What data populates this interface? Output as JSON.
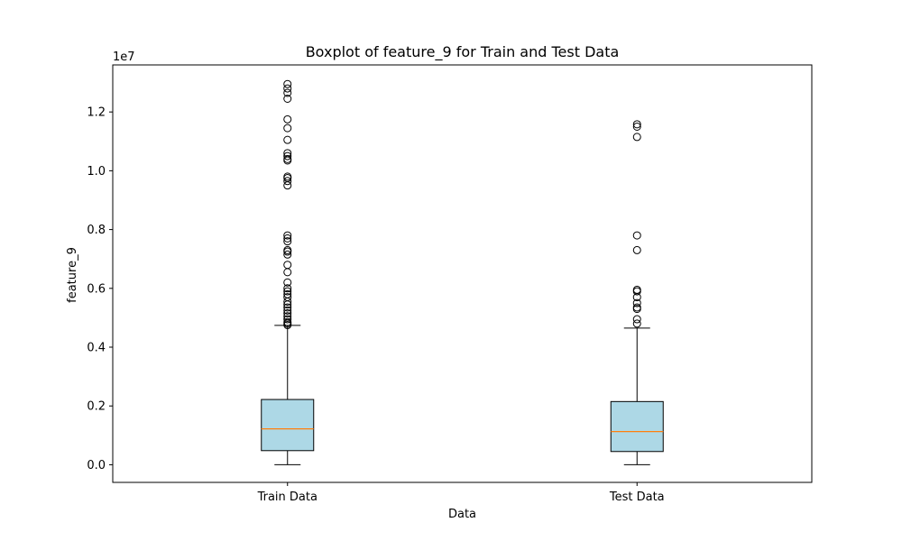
{
  "chart_data": {
    "type": "boxplot",
    "title": "Boxplot of feature_9 for Train and Test Data",
    "xlabel": "Data",
    "ylabel": "feature_9",
    "y_scale_label": "1e7",
    "y_scale": 10000000,
    "ylim": [
      -600000,
      13600000
    ],
    "yticks": [
      0,
      2000000,
      4000000,
      6000000,
      8000000,
      10000000,
      12000000
    ],
    "ytick_labels": [
      "0.0",
      "0.2",
      "0.4",
      "0.6",
      "0.8",
      "1.0",
      "1.2"
    ],
    "categories": [
      "Train Data",
      "Test Data"
    ],
    "box_color": "#add8e6",
    "median_color": "#ff7f0e",
    "grid": false,
    "boxes": [
      {
        "name": "Train Data",
        "whisker_low": 0,
        "q1": 480000,
        "median": 1220000,
        "q3": 2220000,
        "whisker_high": 4740000,
        "outliers": [
          4750000,
          4800000,
          4850000,
          4950000,
          5050000,
          5150000,
          5250000,
          5350000,
          5450000,
          5550000,
          5700000,
          5800000,
          5900000,
          6000000,
          6200000,
          6550000,
          6800000,
          7150000,
          7250000,
          7300000,
          7600000,
          7700000,
          7800000,
          9500000,
          9650000,
          9750000,
          9800000,
          10350000,
          10400000,
          10500000,
          10600000,
          11050000,
          11450000,
          11750000,
          12450000,
          12650000,
          12800000,
          12950000
        ]
      },
      {
        "name": "Test Data",
        "whisker_low": 0,
        "q1": 450000,
        "median": 1130000,
        "q3": 2150000,
        "whisker_high": 4650000,
        "outliers": [
          4800000,
          4950000,
          5300000,
          5350000,
          5500000,
          5700000,
          5900000,
          5950000,
          7300000,
          7800000,
          11150000,
          11500000,
          11580000
        ]
      }
    ]
  }
}
